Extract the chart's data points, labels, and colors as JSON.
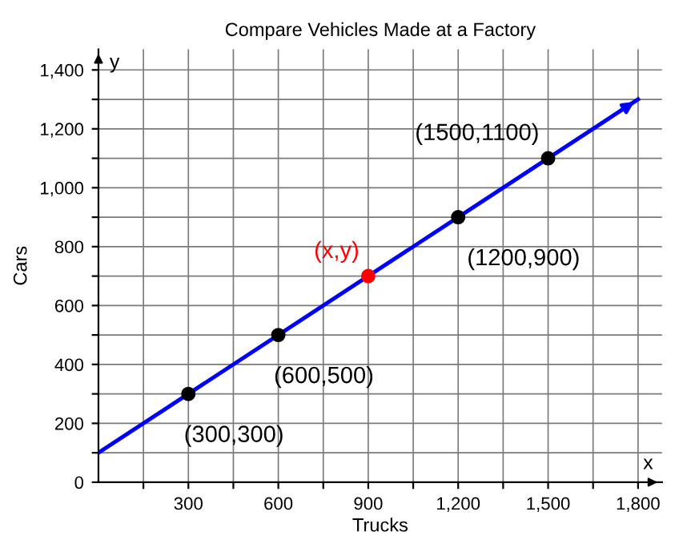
{
  "chart_data": {
    "type": "line",
    "title": "Compare Vehicles Made at a Factory",
    "xlabel": "Trucks",
    "ylabel": "Cars",
    "xlim": [
      0,
      1880
    ],
    "ylim": [
      0,
      1470
    ],
    "xticks": [
      {
        "value": 150,
        "label": null
      },
      300,
      {
        "value": 450,
        "label": null
      },
      600,
      {
        "value": 750,
        "label": null
      },
      900,
      {
        "value": 1050,
        "label": null
      },
      {
        "value": 1200,
        "label": "1,200"
      },
      {
        "value": 1350,
        "label": null
      },
      {
        "value": 1500,
        "label": "1,500"
      },
      {
        "value": 1650,
        "label": null
      },
      {
        "value": 1800,
        "label": "1,800"
      }
    ],
    "yticks": [
      0,
      {
        "value": 100,
        "label": null
      },
      200,
      {
        "value": 300,
        "label": null
      },
      400,
      {
        "value": 500,
        "label": null
      },
      600,
      {
        "value": 700,
        "label": null
      },
      800,
      {
        "value": 900,
        "label": null
      },
      {
        "value": 1000,
        "label": "1,000"
      },
      {
        "value": 1100,
        "label": null
      },
      {
        "value": 1200,
        "label": "1,200"
      },
      {
        "value": 1300,
        "label": null
      },
      {
        "value": 1400,
        "label": "1,400"
      }
    ],
    "grid": true,
    "legend": false,
    "series": [
      {
        "color": "#0000ff",
        "x": [
          0,
          1800
        ],
        "values": [
          100,
          1300
        ],
        "marker": "none"
      },
      {
        "type": "scatter",
        "color": "#000000",
        "x": [
          300,
          600,
          1200,
          1500
        ],
        "values": [
          300,
          500,
          900,
          1100
        ],
        "marker": "circle"
      },
      {
        "type": "scatter",
        "color": "#ff0000",
        "x": [
          900
        ],
        "values": [
          700
        ],
        "marker": "circle"
      }
    ],
    "annotations": [
      {
        "text": "(300,300)",
        "x": 300,
        "y": 300
      },
      {
        "text": "(600,500)",
        "x": 600,
        "y": 500
      },
      {
        "text": "(x,y)",
        "x": 900,
        "y": 700
      },
      {
        "text": "(1200,900)",
        "x": 1200,
        "y": 900
      },
      {
        "text": "(1500,1100)",
        "x": 1500,
        "y": 1100
      },
      "x",
      "y"
    ]
  }
}
